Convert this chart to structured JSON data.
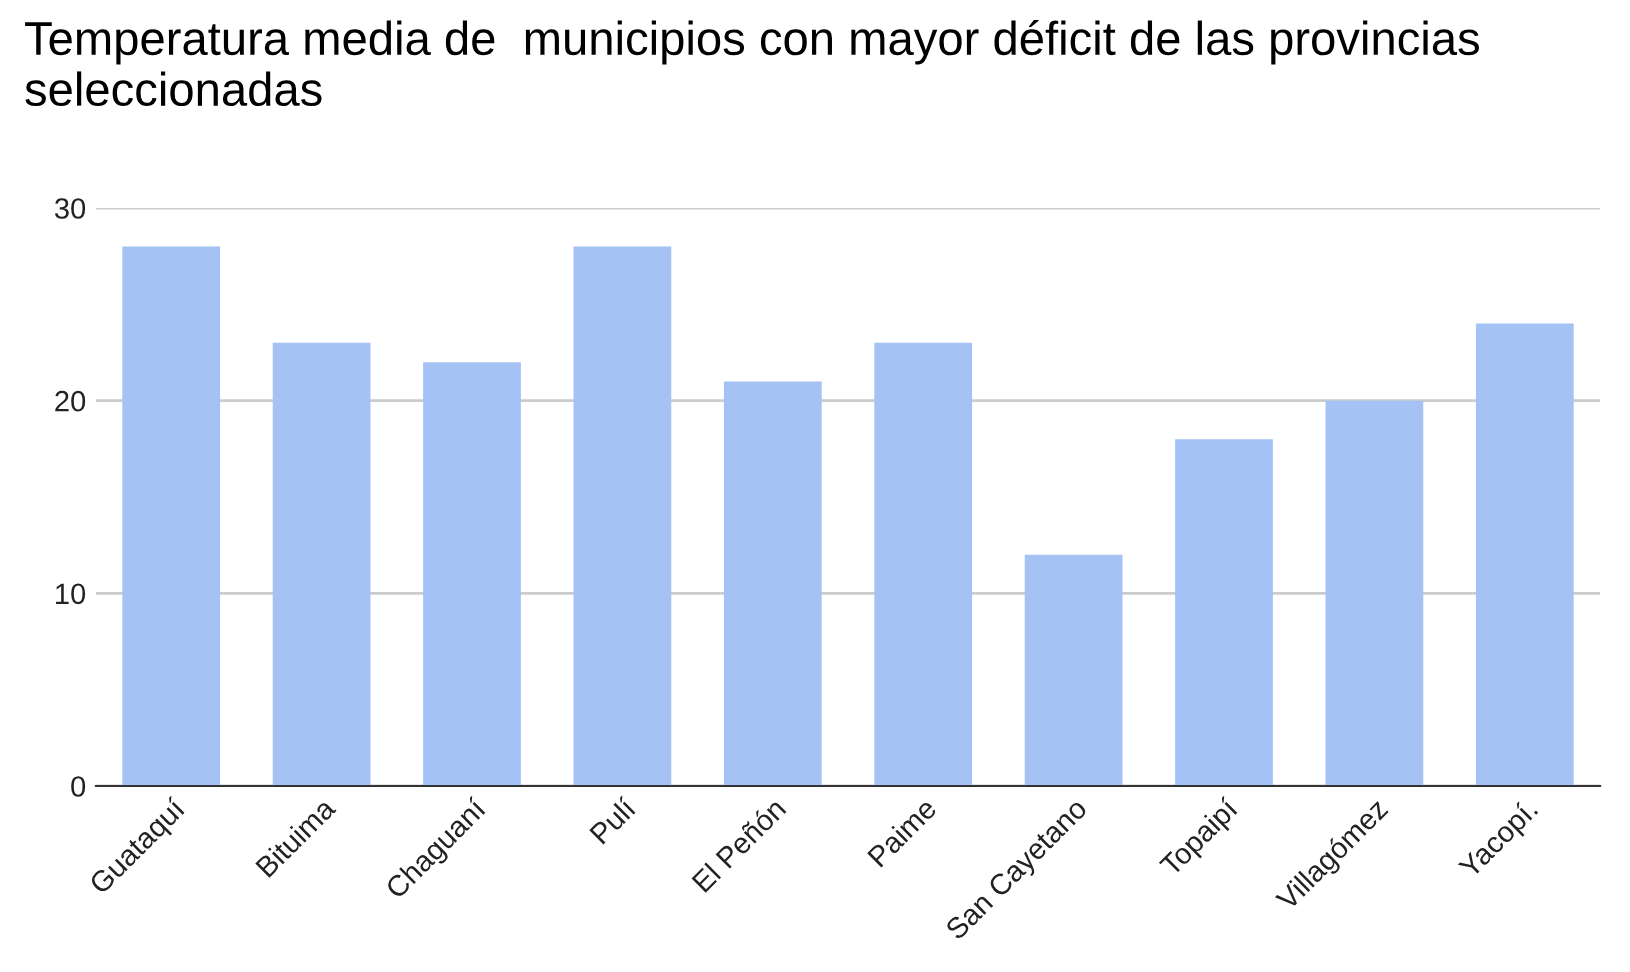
{
  "chart_data": {
    "type": "bar",
    "title": "Temperatura media de  municipios con mayor déficit de las provincias seleccionadas",
    "categories": [
      "Guataquí",
      "Bituima",
      "Chaguaní",
      "Pulí",
      "El Peñón",
      "Paime",
      "San Cayetano",
      "Topaipí",
      "Villagómez",
      "Yacopí."
    ],
    "values": [
      28,
      23,
      22,
      28,
      21,
      23,
      12,
      18,
      20,
      24
    ],
    "color": "#a4c2f4",
    "ylim": [
      0,
      30
    ],
    "yticks": [
      0,
      10,
      20,
      30
    ],
    "grid": "y",
    "legend": false
  }
}
